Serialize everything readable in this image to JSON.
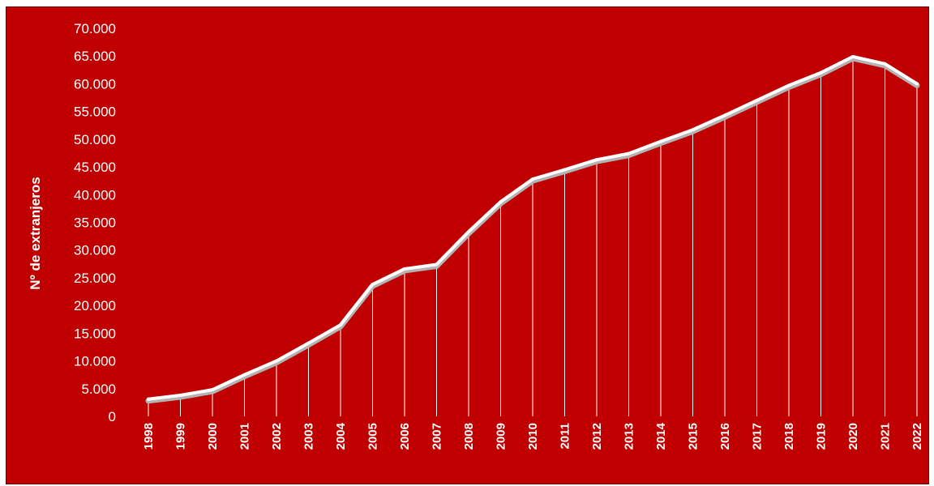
{
  "colors": {
    "background": "#c00000",
    "line": "#ffffff",
    "shadow": "#b3b3b3"
  },
  "chart_data": {
    "type": "line",
    "title": "",
    "xlabel": "",
    "ylabel": "Nº de extranjeros",
    "ylim": [
      0,
      70000
    ],
    "yticks": [
      0,
      5000,
      10000,
      15000,
      20000,
      25000,
      30000,
      35000,
      40000,
      45000,
      50000,
      55000,
      60000,
      65000,
      70000
    ],
    "ytick_labels": [
      "0",
      "5.000",
      "10.000",
      "15.000",
      "20.000",
      "25.000",
      "30.000",
      "35.000",
      "40.000",
      "45.000",
      "50.000",
      "55.000",
      "60.000",
      "65.000",
      "70.000"
    ],
    "drop_lines": true,
    "grid": false,
    "legend": "none",
    "categories": [
      "1998",
      "1999",
      "2000",
      "2001",
      "2002",
      "2003",
      "2004",
      "2005",
      "2006",
      "2007",
      "2008",
      "2009",
      "2010",
      "2011",
      "2012",
      "2013",
      "2014",
      "2015",
      "2016",
      "2017",
      "2018",
      "2019",
      "2020",
      "2021",
      "2022"
    ],
    "series": [
      {
        "values": [
          3100,
          3800,
          4800,
          7500,
          10000,
          13200,
          16500,
          23800,
          26600,
          27400,
          33300,
          38700,
          42800,
          44500,
          46300,
          47400,
          49600,
          51700,
          54300,
          57000,
          59700,
          62000,
          64900,
          63600,
          60000
        ]
      }
    ]
  }
}
